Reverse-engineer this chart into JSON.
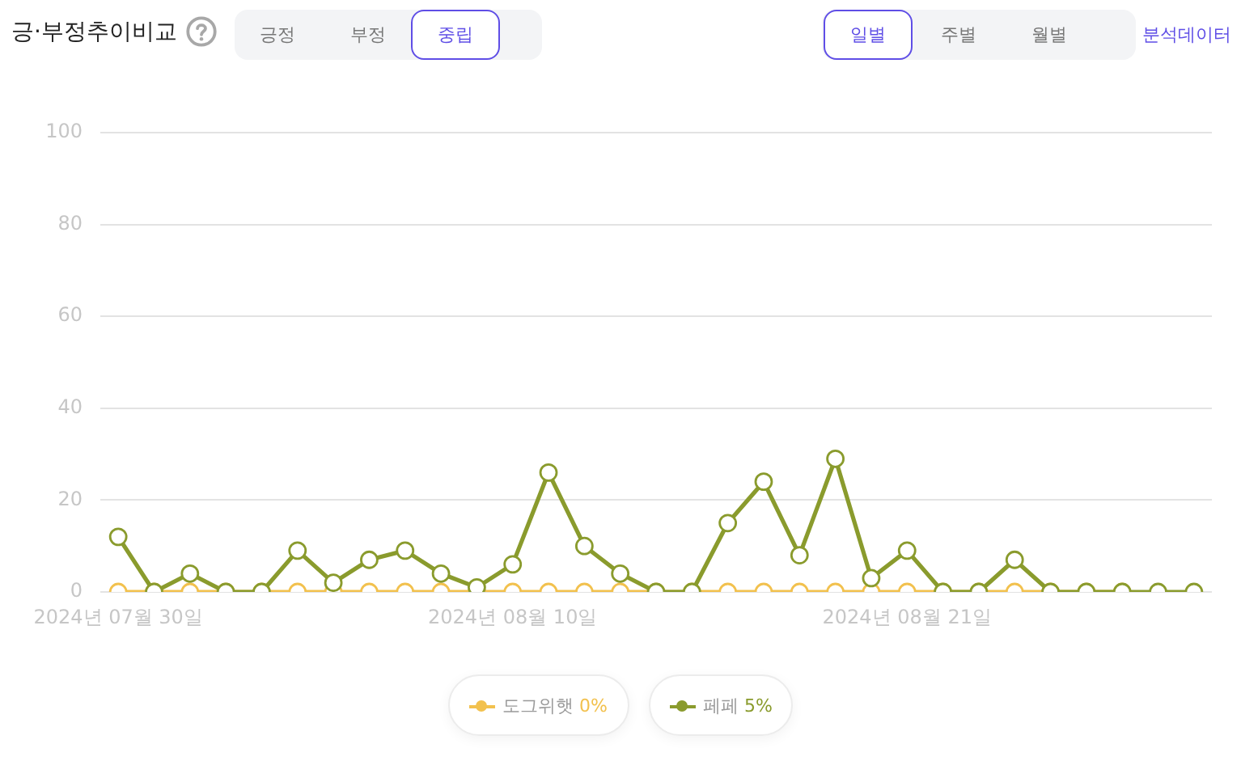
{
  "chart_data": {
    "type": "line",
    "title": "긍·부정추이비교",
    "categories": [
      "2024년 07월 30일",
      null,
      null,
      null,
      null,
      null,
      null,
      null,
      null,
      null,
      null,
      "2024년 08월 10일",
      null,
      null,
      null,
      null,
      null,
      null,
      null,
      null,
      null,
      null,
      "2024년 08월 21일",
      null,
      null,
      null,
      null,
      null,
      null,
      null,
      null
    ],
    "series": [
      {
        "name": "도그위햇 0%",
        "color": "#f2c14e",
        "values": [
          0,
          0,
          0,
          0,
          0,
          0,
          0,
          0,
          0,
          0,
          0,
          0,
          0,
          0,
          0,
          0,
          0,
          0,
          0,
          0,
          0,
          0,
          0,
          0,
          0,
          0,
          0,
          0,
          0,
          null,
          null
        ]
      },
      {
        "name": "페페 5%",
        "color": "#8a9b2d",
        "values": [
          12,
          0,
          4,
          0,
          0,
          9,
          2,
          7,
          9,
          4,
          1,
          6,
          26,
          10,
          4,
          0,
          0,
          15,
          24,
          8,
          29,
          3,
          9,
          0,
          0,
          7,
          0,
          0,
          0,
          0,
          0
        ]
      }
    ],
    "ylim": [
      0,
      100
    ],
    "yticks": [
      0,
      20,
      40,
      60,
      80,
      100
    ],
    "grid": "y",
    "legend": "bottom",
    "marker": "circle",
    "line_style": "solid",
    "annotations": [
      "긍정",
      "부정",
      "중립",
      "일별",
      "주별",
      "월별",
      "분석데이터"
    ]
  }
}
